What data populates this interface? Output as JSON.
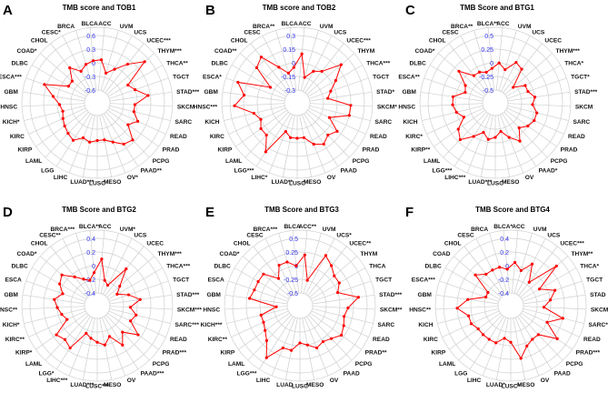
{
  "chart_data": [
    {
      "type": "radar",
      "panel": "A",
      "title": "TMB score and TOB1",
      "rlim": [
        -0.6,
        0.6
      ],
      "ticks": [
        "0.6",
        "0.3",
        "0",
        "-0.3",
        "-0.6"
      ],
      "series_color": "#ff0000",
      "categories": [
        "ACC",
        "UVM",
        "UCS",
        "UCEC***",
        "THYM***",
        "THCA**",
        "TGCT",
        "STAD***",
        "SKCM",
        "SARC",
        "READ",
        "PRAD",
        "PCPG",
        "PAAD**",
        "OV*",
        "MESO",
        "LUSC",
        "LUAD***",
        "LIHC",
        "LGG",
        "LAML",
        "KIRP",
        "KIRC",
        "KICH*",
        "HNSC",
        "GBM",
        "ESCA***",
        "DLBC",
        "COAD*",
        "CHOL",
        "CESC*",
        "BRCA",
        "BLCA"
      ],
      "values": [
        0.07,
        -0.2,
        -0.05,
        0.2,
        0.5,
        -0.1,
        0.0,
        0.25,
        -0.05,
        -0.05,
        0.1,
        -0.05,
        0.25,
        0.2,
        0.05,
        -0.05,
        -0.05,
        0.0,
        -0.05,
        0.1,
        0.05,
        0.0,
        -0.05,
        -0.1,
        -0.05,
        0.1,
        0.35,
        -0.15,
        -0.15,
        0.1,
        -0.1,
        0.0,
        0.05
      ]
    },
    {
      "type": "radar",
      "panel": "B",
      "title": "TMB score and TOB2",
      "rlim": [
        -0.3,
        0.3
      ],
      "ticks": [
        "0.3",
        "0.15",
        "0",
        "-0.15",
        "-0.3"
      ],
      "series_color": "#ff0000",
      "categories": [
        "ACC",
        "UVM",
        "UCS",
        "UCEC***",
        "THYM",
        "THCA***",
        "TGCT",
        "STAD*",
        "SKCM*",
        "SARC",
        "READ",
        "PRAD",
        "PCPG",
        "PAAD",
        "OV",
        "MESO",
        "LUSC",
        "LUAD**",
        "LIHC*",
        "LGG***",
        "LAML",
        "KIRP",
        "KIRC",
        "KICH",
        "HNSC***",
        "GBM",
        "ESCA*",
        "DLBC",
        "COAD**",
        "CHOL",
        "CESC",
        "BRCA**",
        "BLCA"
      ],
      "values": [
        0.1,
        -0.15,
        -0.05,
        0.0,
        0.2,
        0.05,
        -0.05,
        -0.1,
        0.15,
        0.15,
        -0.05,
        0.1,
        0.05,
        0.1,
        0.05,
        -0.05,
        -0.05,
        -0.05,
        -0.1,
        0.2,
        0.05,
        0.05,
        0.0,
        0.05,
        0.25,
        0.15,
        0.25,
        -0.1,
        0.15,
        0.2,
        0.0,
        -0.1,
        -0.05
      ]
    },
    {
      "type": "radar",
      "panel": "C",
      "title": "TMB Score and BTG1",
      "rlim": [
        -0.5,
        0.5
      ],
      "ticks": [
        "0.5",
        "0.25",
        "0",
        "-0.25",
        "-0.5"
      ],
      "series_color": "#ff0000",
      "categories": [
        "ACC",
        "UVM",
        "UCS",
        "UCEC",
        "THYM***",
        "THCA*",
        "TGCT*",
        "STAD***",
        "SKCM",
        "SARC",
        "READ",
        "PRAD",
        "PCPG",
        "PAAD*",
        "OV",
        "MESO",
        "LUSC",
        "LUAD***",
        "LIHC***",
        "LGG***",
        "LAML",
        "KIRP**",
        "KIRC*",
        "KICH",
        "HNSC",
        "GBM",
        "ESCA**",
        "DLBC",
        "COAD*",
        "CHOL",
        "CESC",
        "BRCA**",
        "BLCA**"
      ],
      "values": [
        0.0,
        -0.1,
        0.1,
        0.05,
        -0.3,
        -0.1,
        -0.1,
        0.0,
        -0.05,
        0.05,
        0.05,
        0.0,
        -0.1,
        0.1,
        -0.05,
        -0.2,
        -0.1,
        -0.05,
        -0.15,
        0.0,
        0.2,
        0.1,
        -0.1,
        0.0,
        0.05,
        0.05,
        -0.15,
        -0.1,
        0.15,
        -0.1,
        -0.1,
        -0.15,
        -0.1
      ]
    },
    {
      "type": "radar",
      "panel": "D",
      "title": "TMB Score and BTG2",
      "rlim": [
        -0.4,
        0.4
      ],
      "ticks": [
        "0.4",
        "0.2",
        "0",
        "-0.2",
        "-0.4"
      ],
      "series_color": "#ff0000",
      "categories": [
        "ACC",
        "UVM*",
        "UCS",
        "UCEC",
        "THYM***",
        "THCA***",
        "TGCT",
        "STAD***",
        "SKCM***",
        "SARC***",
        "READ",
        "PRAD***",
        "PCPG",
        "PAAD***",
        "OV",
        "MESO",
        "LUSC***",
        "LUAD***",
        "LIHC***",
        "LGG*",
        "LAML",
        "KIRP*",
        "KIRC**",
        "KICH*",
        "HNSC**",
        "GBM",
        "ESCA",
        "DLBC",
        "COAD*",
        "CHOL",
        "CESC**",
        "BRCA***",
        "BLCA**"
      ],
      "values": [
        0.1,
        -0.2,
        -0.25,
        0.1,
        -0.15,
        -0.25,
        -0.1,
        0.05,
        -0.1,
        0.0,
        -0.05,
        0.15,
        -0.05,
        0.1,
        -0.1,
        0.0,
        -0.05,
        -0.1,
        -0.15,
        0.15,
        0.1,
        0.15,
        -0.1,
        -0.05,
        0.0,
        0.05,
        -0.05,
        0.05,
        0.1,
        -0.05,
        -0.15,
        -0.2,
        -0.1
      ]
    },
    {
      "type": "radar",
      "panel": "E",
      "title": "TMB Score and BTG3",
      "rlim": [
        -0.5,
        0.5
      ],
      "ticks": [
        "0.5",
        "0.25",
        "0",
        "-0.25",
        "-0.5"
      ],
      "series_color": "#ff0000",
      "categories": [
        "ACC**",
        "UVM",
        "UCS*",
        "UCEC**",
        "THYM",
        "THCA",
        "TGCT",
        "STAD***",
        "SKCM**",
        "SARC",
        "READ",
        "PRAD**",
        "PCPG",
        "PAAD",
        "OV",
        "MESO",
        "LUSC",
        "LUAD",
        "LIHC",
        "LGG***",
        "LAML",
        "KIRP",
        "KIRC**",
        "KICH***",
        "HNSC",
        "GBM",
        "ESCA",
        "DLBC",
        "COAD*",
        "CHOL",
        "CESC",
        "BRCA***",
        "BLCA"
      ],
      "values": [
        0.2,
        -0.25,
        0.3,
        0.2,
        0.1,
        0.1,
        0.0,
        0.35,
        0.15,
        0.1,
        0.15,
        0.2,
        0.1,
        0.05,
        0.1,
        0.0,
        -0.05,
        0.1,
        0.1,
        0.4,
        0.15,
        0.05,
        0.0,
        0.0,
        -0.3,
        0.2,
        0.15,
        0.15,
        0.15,
        -0.1,
        0.1,
        0.1,
        0.0
      ]
    },
    {
      "type": "radar",
      "panel": "F",
      "title": "TMB Score and BTG4",
      "rlim": [
        -0.4,
        0.4
      ],
      "ticks": [
        "0.4",
        "0.2",
        "0",
        "-0.2",
        "-0.4"
      ],
      "series_color": "#ff0000",
      "categories": [
        "ACC",
        "UVM",
        "UCS",
        "UCEC***",
        "THYM**",
        "THCA*",
        "TGCT",
        "STAD",
        "SKCM",
        "SARC**",
        "READ",
        "PRAD***",
        "PCPG",
        "PAAD",
        "OV",
        "MESO",
        "LUSC*",
        "LUAD*",
        "LIHC",
        "LGG",
        "LAML",
        "KIRP",
        "KIRC",
        "KICH",
        "HNSC**",
        "GBM",
        "ESCA***",
        "DLBC",
        "COAD",
        "CHOL",
        "CESC",
        "BRCA",
        "BLCA*"
      ],
      "values": [
        0.05,
        -0.05,
        0.1,
        -0.15,
        0.3,
        -0.1,
        0.1,
        0.0,
        -0.1,
        0.2,
        0.0,
        0.25,
        0.0,
        0.0,
        0.05,
        0.2,
        -0.05,
        -0.1,
        0.0,
        0.0,
        0.0,
        0.0,
        0.05,
        0.05,
        0.2,
        0.05,
        -0.2,
        -0.2,
        0.1,
        0.0,
        0.0,
        0.0,
        -0.05
      ]
    }
  ]
}
